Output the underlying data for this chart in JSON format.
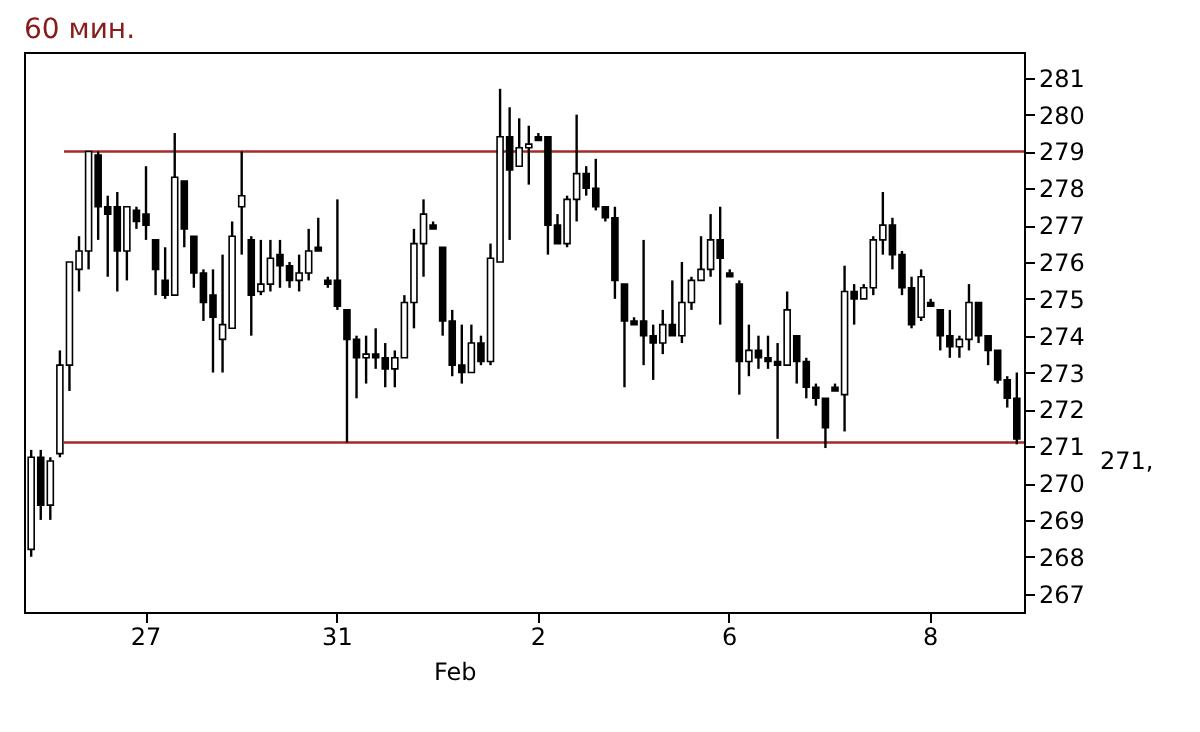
{
  "chart_data": {
    "type": "candlestick",
    "title": "60 мин.",
    "categories": [
      null,
      null,
      null,
      null,
      null,
      null,
      null,
      null,
      null,
      null,
      null,
      null,
      "27",
      null,
      null,
      null,
      null,
      null,
      null,
      null,
      null,
      null,
      null,
      null,
      null,
      null,
      null,
      null,
      null,
      null,
      null,
      null,
      "31",
      null,
      null,
      null,
      null,
      null,
      null,
      null,
      null,
      null,
      null,
      null,
      null,
      null,
      null,
      null,
      null,
      null,
      null,
      null,
      null,
      "2",
      null,
      null,
      null,
      null,
      null,
      null,
      null,
      null,
      null,
      null,
      null,
      null,
      null,
      null,
      null,
      null,
      null,
      null,
      null,
      "6",
      null,
      null,
      null,
      null,
      null,
      null,
      null,
      null,
      null,
      null,
      null,
      null,
      null,
      null,
      null,
      null,
      null,
      null,
      null,
      null,
      "8",
      null,
      null,
      null,
      null,
      null,
      null,
      null,
      null,
      null
    ],
    "ohlc": [
      [
        268.2,
        270.9,
        268.0,
        270.7
      ],
      [
        270.7,
        270.9,
        269.0,
        269.4
      ],
      [
        269.4,
        270.7,
        269.0,
        270.6
      ],
      [
        270.8,
        273.6,
        270.7,
        273.2
      ],
      [
        273.2,
        276.0,
        272.5,
        276.0
      ],
      [
        275.8,
        276.7,
        275.2,
        276.3
      ],
      [
        276.3,
        279.0,
        275.8,
        279.0
      ],
      [
        278.9,
        279.0,
        276.6,
        277.5
      ],
      [
        277.5,
        277.8,
        275.6,
        277.3
      ],
      [
        277.5,
        277.9,
        275.2,
        276.3
      ],
      [
        276.3,
        277.5,
        275.5,
        277.5
      ],
      [
        277.4,
        277.5,
        276.9,
        277.1
      ],
      [
        277.3,
        278.6,
        276.6,
        277.0
      ],
      [
        276.6,
        276.6,
        275.1,
        275.8
      ],
      [
        275.5,
        276.4,
        275.0,
        275.1
      ],
      [
        275.1,
        279.5,
        275.1,
        278.3
      ],
      [
        278.2,
        278.2,
        276.4,
        276.9
      ],
      [
        276.7,
        276.7,
        275.3,
        275.7
      ],
      [
        275.7,
        275.8,
        274.4,
        274.9
      ],
      [
        275.1,
        275.8,
        273.0,
        274.5
      ],
      [
        273.9,
        276.2,
        273.0,
        274.3
      ],
      [
        274.2,
        277.1,
        274.2,
        276.7
      ],
      [
        277.5,
        279.0,
        276.2,
        277.8
      ],
      [
        276.6,
        276.7,
        274.0,
        275.1
      ],
      [
        275.2,
        276.6,
        275.1,
        275.4
      ],
      [
        275.4,
        276.6,
        275.2,
        276.1
      ],
      [
        276.2,
        276.6,
        275.3,
        275.9
      ],
      [
        275.9,
        276.0,
        275.3,
        275.5
      ],
      [
        275.5,
        276.2,
        275.2,
        275.7
      ],
      [
        275.7,
        276.9,
        275.5,
        276.3
      ],
      [
        276.4,
        277.2,
        276.3,
        276.3
      ],
      [
        275.5,
        275.6,
        275.3,
        275.4
      ],
      [
        275.5,
        277.7,
        274.7,
        274.8
      ],
      [
        274.7,
        274.7,
        271.1,
        273.9
      ],
      [
        273.9,
        274.0,
        272.3,
        273.4
      ],
      [
        273.4,
        274.0,
        272.7,
        273.5
      ],
      [
        273.5,
        274.2,
        273.1,
        273.4
      ],
      [
        273.4,
        273.8,
        272.6,
        273.1
      ],
      [
        273.1,
        273.6,
        272.6,
        273.4
      ],
      [
        273.4,
        275.1,
        273.4,
        274.9
      ],
      [
        274.9,
        276.9,
        274.2,
        276.5
      ],
      [
        276.5,
        277.7,
        275.6,
        277.3
      ],
      [
        277.0,
        277.1,
        276.9,
        276.9
      ],
      [
        276.4,
        276.4,
        274.0,
        274.4
      ],
      [
        274.4,
        274.7,
        272.9,
        273.2
      ],
      [
        273.2,
        274.3,
        272.7,
        273.0
      ],
      [
        273.0,
        274.3,
        273.0,
        273.8
      ],
      [
        273.8,
        274.0,
        273.2,
        273.3
      ],
      [
        273.3,
        276.5,
        273.2,
        276.1
      ],
      [
        276.0,
        280.7,
        276.0,
        279.4
      ],
      [
        279.4,
        280.2,
        276.6,
        278.5
      ],
      [
        278.6,
        279.9,
        278.6,
        279.1
      ],
      [
        279.1,
        279.7,
        278.1,
        279.2
      ],
      [
        279.4,
        279.5,
        279.3,
        279.3
      ],
      [
        279.4,
        279.4,
        276.2,
        277.0
      ],
      [
        277.0,
        277.3,
        276.5,
        276.5
      ],
      [
        276.5,
        277.8,
        276.4,
        277.7
      ],
      [
        277.7,
        280.0,
        277.1,
        278.4
      ],
      [
        278.4,
        278.6,
        277.8,
        278.0
      ],
      [
        278.0,
        278.8,
        277.4,
        277.5
      ],
      [
        277.5,
        277.5,
        277.1,
        277.2
      ],
      [
        277.2,
        277.5,
        275.0,
        275.5
      ],
      [
        275.4,
        275.4,
        272.6,
        274.4
      ],
      [
        274.4,
        274.5,
        274.3,
        274.3
      ],
      [
        274.4,
        276.6,
        273.2,
        274.0
      ],
      [
        274.0,
        274.3,
        272.8,
        273.8
      ],
      [
        273.8,
        274.7,
        273.5,
        274.3
      ],
      [
        274.3,
        275.5,
        274.0,
        274.0
      ],
      [
        274.0,
        276.0,
        273.8,
        274.9
      ],
      [
        274.9,
        275.6,
        274.7,
        275.5
      ],
      [
        275.5,
        276.7,
        275.5,
        275.8
      ],
      [
        275.8,
        277.3,
        275.6,
        276.6
      ],
      [
        276.6,
        277.5,
        274.3,
        276.1
      ],
      [
        275.7,
        275.8,
        275.6,
        275.6
      ],
      [
        275.4,
        275.5,
        272.4,
        273.3
      ],
      [
        273.3,
        274.3,
        272.9,
        273.6
      ],
      [
        273.6,
        274.0,
        273.1,
        273.4
      ],
      [
        273.4,
        274.0,
        273.1,
        273.3
      ],
      [
        273.3,
        273.8,
        271.2,
        273.2
      ],
      [
        273.2,
        275.2,
        273.2,
        274.7
      ],
      [
        274.0,
        274.0,
        272.7,
        273.3
      ],
      [
        273.3,
        273.4,
        272.3,
        272.6
      ],
      [
        272.6,
        272.7,
        272.1,
        272.3
      ],
      [
        272.3,
        272.3,
        270.95,
        271.5
      ],
      [
        272.6,
        272.7,
        272.5,
        272.5
      ],
      [
        272.4,
        275.9,
        271.4,
        275.2
      ],
      [
        275.2,
        275.4,
        274.3,
        275.0
      ],
      [
        275.0,
        275.4,
        275.0,
        275.3
      ],
      [
        275.3,
        276.7,
        275.1,
        276.6
      ],
      [
        276.6,
        277.9,
        276.2,
        277.0
      ],
      [
        277.0,
        277.2,
        275.8,
        276.2
      ],
      [
        276.2,
        276.3,
        275.1,
        275.3
      ],
      [
        275.3,
        275.6,
        274.2,
        274.3
      ],
      [
        274.5,
        275.8,
        274.4,
        275.6
      ],
      [
        274.9,
        275.0,
        274.8,
        274.8
      ],
      [
        274.7,
        274.7,
        273.6,
        274.0
      ],
      [
        274.0,
        274.7,
        273.4,
        273.7
      ],
      [
        273.7,
        274.0,
        273.4,
        273.9
      ],
      [
        273.9,
        275.4,
        273.6,
        274.9
      ],
      [
        274.9,
        274.9,
        273.8,
        274.0
      ],
      [
        274.0,
        274.0,
        273.2,
        273.6
      ],
      [
        273.6,
        273.6,
        272.7,
        272.8
      ],
      [
        272.8,
        272.9,
        272.05,
        272.3
      ],
      [
        272.3,
        273.0,
        271.05,
        271.2
      ]
    ],
    "color": "#000000",
    "ylim": [
      266.5,
      281.7
    ],
    "yticks": [
      267,
      268,
      269,
      270,
      271,
      272,
      273,
      274,
      275,
      276,
      277,
      278,
      279,
      280,
      281
    ],
    "ref_lines": [
      {
        "axis": "y",
        "value": 279.0,
        "color": "#a52a2a"
      },
      {
        "axis": "y",
        "value": 271.1,
        "color": "#a52a2a"
      }
    ],
    "annotations": [
      "Feb",
      "271,"
    ],
    "grid": false
  }
}
